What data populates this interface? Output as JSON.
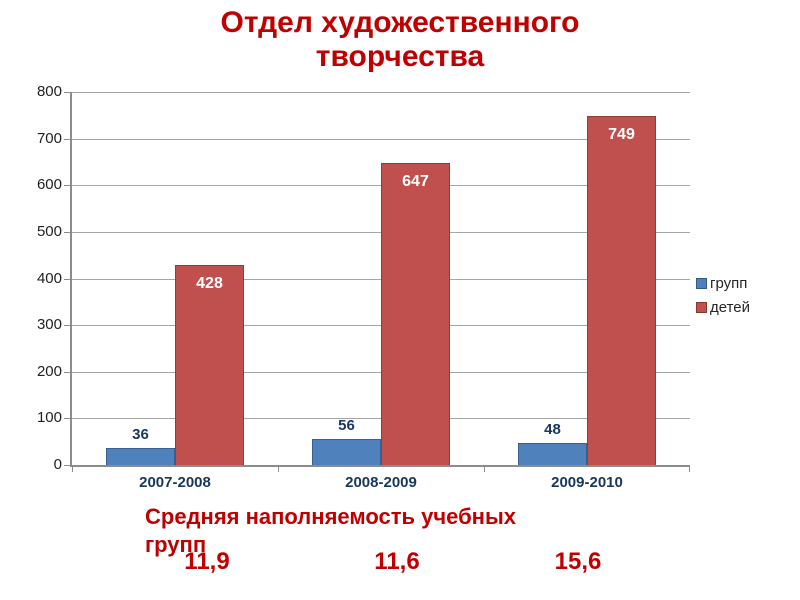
{
  "title": "Отдел художественного творчества",
  "caption": "Средняя наполняемость учебных групп",
  "averages": [
    "11,9",
    "11,6",
    "15,6"
  ],
  "colors": {
    "title_red": "#C00000",
    "bar_blue": "#4F81BD",
    "bar_red": "#C0504D",
    "label_navy": "#17375E",
    "value_label_white": "#FFFFFF",
    "axis_gray": "#8C8C8C",
    "gridline_gray": "#A6A6A6"
  },
  "chart_data": {
    "type": "bar",
    "title": "Отдел художественного творчества",
    "categories": [
      "2007-2008",
      "2008-2009",
      "2009-2010"
    ],
    "series": [
      {
        "name": "групп",
        "color": "#4F81BD",
        "values": [
          36,
          56,
          48
        ]
      },
      {
        "name": "детей",
        "color": "#C0504D",
        "values": [
          428,
          647,
          749
        ]
      }
    ],
    "xlabel": "",
    "ylabel": "",
    "ylim": [
      0,
      800
    ],
    "ytick_step": 100,
    "yticks": [
      0,
      100,
      200,
      300,
      400,
      500,
      600,
      700,
      800
    ],
    "grid": true,
    "legend_position": "right",
    "data_labels": true
  }
}
